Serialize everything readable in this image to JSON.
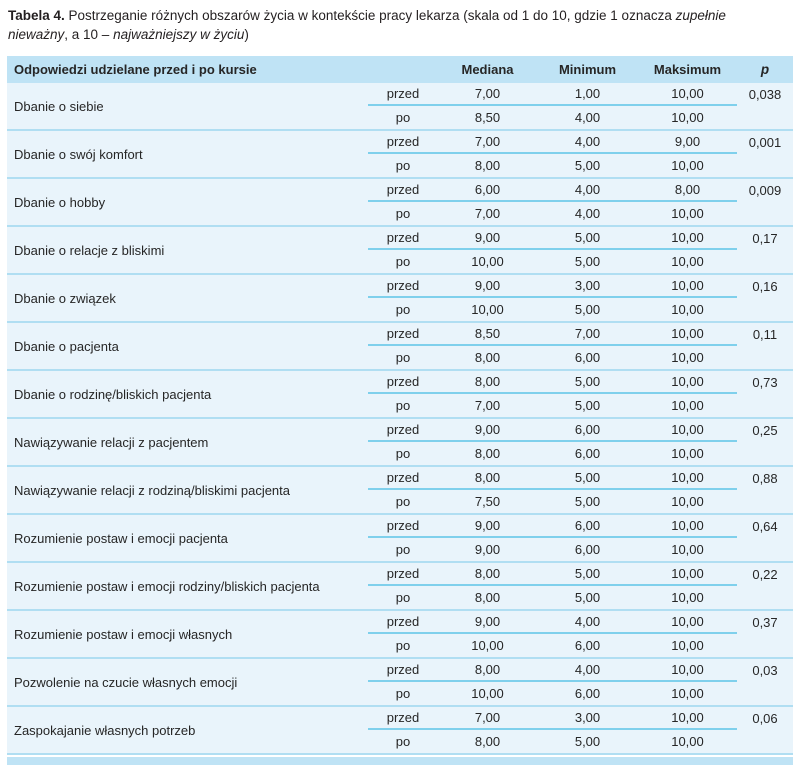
{
  "caption": {
    "parts": [
      {
        "text": "Tabela 4.",
        "style": "bold"
      },
      {
        "text": " Postrzeganie różnych obszarów życia w kontekście pracy lekarza (skala od 1 do 10, gdzie 1 oznacza ",
        "style": "normal"
      },
      {
        "text": "zupełnie nieważny",
        "style": "italic"
      },
      {
        "text": ", a 10 – ",
        "style": "normal"
      },
      {
        "text": "najważniejszy w życiu",
        "style": "italic"
      },
      {
        "text": ")",
        "style": "normal"
      }
    ]
  },
  "table": {
    "header": [
      "Odpowiedzi udzielane przed i po kursie",
      "Mediana",
      "Minimum",
      "Maksimum",
      "p"
    ],
    "row_labels": {
      "przed": "przed",
      "po": "po"
    },
    "groups": [
      {
        "label": "Dbanie o siebie",
        "przed": [
          "7,00",
          "1,00",
          "10,00"
        ],
        "po": [
          "8,50",
          "4,00",
          "10,00"
        ],
        "p": "0,038"
      },
      {
        "label": "Dbanie o swój komfort",
        "przed": [
          "7,00",
          "4,00",
          "9,00"
        ],
        "po": [
          "8,00",
          "5,00",
          "10,00"
        ],
        "p": "0,001"
      },
      {
        "label": "Dbanie o hobby",
        "przed": [
          "6,00",
          "4,00",
          "8,00"
        ],
        "po": [
          "7,00",
          "4,00",
          "10,00"
        ],
        "p": "0,009"
      },
      {
        "label": "Dbanie o relacje z bliskimi",
        "przed": [
          "9,00",
          "5,00",
          "10,00"
        ],
        "po": [
          "10,00",
          "5,00",
          "10,00"
        ],
        "p": "0,17"
      },
      {
        "label": "Dbanie o związek",
        "przed": [
          "9,00",
          "3,00",
          "10,00"
        ],
        "po": [
          "10,00",
          "5,00",
          "10,00"
        ],
        "p": "0,16"
      },
      {
        "label": "Dbanie o pacjenta",
        "przed": [
          "8,50",
          "7,00",
          "10,00"
        ],
        "po": [
          "8,00",
          "6,00",
          "10,00"
        ],
        "p": "0,11"
      },
      {
        "label": "Dbanie o rodzinę/bliskich pacjenta",
        "przed": [
          "8,00",
          "5,00",
          "10,00"
        ],
        "po": [
          "7,00",
          "5,00",
          "10,00"
        ],
        "p": "0,73"
      },
      {
        "label": "Nawiązywanie relacji z pacjentem",
        "przed": [
          "9,00",
          "6,00",
          "10,00"
        ],
        "po": [
          "8,00",
          "6,00",
          "10,00"
        ],
        "p": "0,25"
      },
      {
        "label": "Nawiązywanie relacji z rodziną/bliskimi pacjenta",
        "przed": [
          "8,00",
          "5,00",
          "10,00"
        ],
        "po": [
          "7,50",
          "5,00",
          "10,00"
        ],
        "p": "0,88"
      },
      {
        "label": "Rozumienie postaw i emocji pacjenta",
        "przed": [
          "9,00",
          "6,00",
          "10,00"
        ],
        "po": [
          "9,00",
          "6,00",
          "10,00"
        ],
        "p": "0,64"
      },
      {
        "label": "Rozumienie postaw i emocji rodziny/bliskich pacjenta",
        "przed": [
          "8,00",
          "5,00",
          "10,00"
        ],
        "po": [
          "8,00",
          "5,00",
          "10,00"
        ],
        "p": "0,22"
      },
      {
        "label": "Rozumienie postaw i emocji własnych",
        "przed": [
          "9,00",
          "4,00",
          "10,00"
        ],
        "po": [
          "10,00",
          "6,00",
          "10,00"
        ],
        "p": "0,37"
      },
      {
        "label": "Pozwolenie na czucie własnych emocji",
        "przed": [
          "8,00",
          "4,00",
          "10,00"
        ],
        "po": [
          "10,00",
          "6,00",
          "10,00"
        ],
        "p": "0,03"
      },
      {
        "label": "Zaspokajanie własnych potrzeb",
        "przed": [
          "7,00",
          "3,00",
          "10,00"
        ],
        "po": [
          "8,00",
          "5,00",
          "10,00"
        ],
        "p": "0,06"
      }
    ]
  },
  "colors": {
    "header_bg": "#bfe3f5",
    "row_bg": "#e9f4fb",
    "group_line": "#b0def2",
    "inner_line": "#7fd0ec",
    "footer_bar": "#bfe3f5",
    "text": "#262626"
  }
}
